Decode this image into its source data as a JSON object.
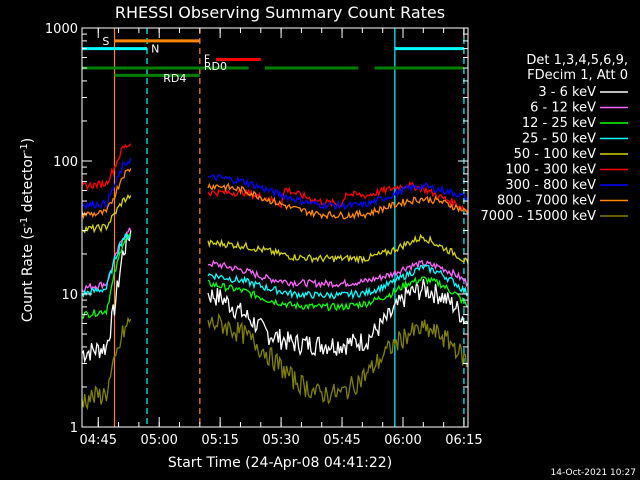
{
  "chart_data": {
    "type": "line",
    "title": "RHESSI Observing Summary Count Rates",
    "xlabel": "Start Time (24-Apr-08 04:41:22)",
    "ylabel_parts": [
      "Count Rate (s",
      "-1",
      " detector",
      "-1",
      ")"
    ],
    "footer_date": "14-Oct-2021 10:27",
    "yscale": "log",
    "ylim": [
      1,
      1000
    ],
    "xlim_min": [
      0,
      95
    ],
    "x_ticks": [
      {
        "m": 4,
        "label": "04:45"
      },
      {
        "m": 19,
        "label": "05:00"
      },
      {
        "m": 34,
        "label": "05:15"
      },
      {
        "m": 49,
        "label": "05:30"
      },
      {
        "m": 64,
        "label": "05:45"
      },
      {
        "m": 79,
        "label": "06:00"
      },
      {
        "m": 94,
        "label": "06:15"
      }
    ],
    "y_ticks": [
      {
        "v": 1,
        "label": "1"
      },
      {
        "v": 10,
        "label": "10"
      },
      {
        "v": 100,
        "label": "100"
      },
      {
        "v": 1000,
        "label": "1000"
      }
    ],
    "legend_header": [
      "Det 1,3,4,5,6,9,",
      "FDecim 1, Att 0"
    ],
    "series": [
      {
        "name": "3 - 6 keV",
        "color": "#ffffff",
        "segments": [
          {
            "x": [
              0,
              3,
              6,
              8,
              10,
              12
            ],
            "y": [
              3.6,
              3.8,
              4,
              8,
              20,
              30
            ]
          },
          {
            "x": [
              31,
              34,
              40,
              46,
              52,
              58,
              64,
              70,
              76,
              80,
              84,
              88,
              92,
              95
            ],
            "y": [
              10,
              9.5,
              7,
              5,
              4.3,
              4.2,
              4.2,
              4.5,
              7,
              10,
              11,
              10,
              8,
              6
            ]
          }
        ]
      },
      {
        "name": "6 - 12 keV",
        "color": "#ff66ff",
        "segments": [
          {
            "x": [
              0,
              3,
              6,
              8,
              10,
              12
            ],
            "y": [
              11,
              11.5,
              12,
              18,
              27,
              30
            ]
          },
          {
            "x": [
              31,
              34,
              40,
              46,
              52,
              58,
              64,
              70,
              76,
              80,
              84,
              88,
              92,
              95
            ],
            "y": [
              17,
              16.5,
              15,
              13,
              12.2,
              12,
              12,
              12.5,
              14,
              16,
              17,
              16,
              14,
              12
            ]
          }
        ]
      },
      {
        "name": "12 - 25 keV",
        "color": "#00ff00",
        "segments": [
          {
            "x": [
              0,
              3,
              6,
              8,
              10,
              12
            ],
            "y": [
              7,
              7.2,
              7.5,
              14,
              24,
              28
            ]
          },
          {
            "x": [
              31,
              34,
              40,
              46,
              52,
              58,
              64,
              70,
              76,
              80,
              84,
              88,
              92,
              95
            ],
            "y": [
              12,
              11.5,
              10.5,
              9,
              8.2,
              8,
              8,
              8.5,
              10,
              12,
              13,
              12,
              10,
              8
            ]
          }
        ]
      },
      {
        "name": "25 - 50 keV",
        "color": "#00ffff",
        "segments": [
          {
            "x": [
              0,
              3,
              6,
              8,
              10,
              12
            ],
            "y": [
              10,
              10.5,
              11,
              18,
              26,
              28
            ]
          },
          {
            "x": [
              31,
              34,
              40,
              46,
              52,
              58,
              64,
              70,
              76,
              80,
              84,
              88,
              92,
              95
            ],
            "y": [
              14,
              13.5,
              12.5,
              11,
              10,
              9.8,
              9.8,
              10.2,
              12,
              14,
              16,
              14.5,
              12,
              10
            ]
          }
        ]
      },
      {
        "name": "50 - 100 keV",
        "color": "#d4d400",
        "segments": [
          {
            "x": [
              0,
              3,
              6,
              8,
              10,
              12
            ],
            "y": [
              31,
              31,
              32,
              40,
              50,
              55
            ]
          },
          {
            "x": [
              31,
              34,
              40,
              46,
              52,
              58,
              64,
              70,
              76,
              80,
              84,
              88,
              92,
              95
            ],
            "y": [
              24,
              24,
              23,
              21,
              19,
              18.5,
              18.5,
              18.5,
              21,
              24,
              27,
              23,
              20,
              17
            ]
          }
        ]
      },
      {
        "name": "100 - 300 keV",
        "color": "#ff0000",
        "segments": [
          {
            "x": [
              0,
              3,
              6,
              8,
              10,
              12
            ],
            "y": [
              65,
              66,
              68,
              90,
              125,
              135
            ]
          },
          {
            "x": [
              31,
              34,
              40,
              46,
              49,
              50,
              52,
              58,
              64,
              65,
              66,
              70,
              76,
              80,
              84,
              88,
              92,
              95
            ],
            "y": [
              58,
              58,
              58,
              52,
              47,
              62,
              58,
              50,
              47,
              58,
              56,
              55,
              62,
              66,
              62,
              54,
              48,
              42
            ]
          }
        ]
      },
      {
        "name": "300 - 800 keV",
        "color": "#0000ff",
        "segments": [
          {
            "x": [
              0,
              3,
              6,
              8,
              10,
              12
            ],
            "y": [
              47,
              47,
              48,
              65,
              90,
              105
            ]
          },
          {
            "x": [
              31,
              34,
              40,
              46,
              52,
              58,
              64,
              70,
              76,
              80,
              84,
              88,
              92,
              95
            ],
            "y": [
              75,
              75,
              70,
              60,
              52,
              47,
              46,
              47,
              55,
              62,
              65,
              61,
              57,
              52
            ]
          }
        ]
      },
      {
        "name": "800 - 7000 keV",
        "color": "#ff8800",
        "segments": [
          {
            "x": [
              0,
              3,
              6,
              8,
              10,
              12
            ],
            "y": [
              40,
              40,
              41,
              55,
              78,
              88
            ]
          },
          {
            "x": [
              31,
              34,
              40,
              46,
              52,
              58,
              64,
              70,
              76,
              80,
              84,
              88,
              92,
              95
            ],
            "y": [
              65,
              65,
              60,
              51,
              44,
              40,
              39,
              40,
              46,
              50,
              52,
              50,
              45,
              41
            ]
          }
        ]
      },
      {
        "name": "7000 - 15000 keV",
        "color": "#808000",
        "segments": [
          {
            "x": [
              0,
              3,
              6,
              8,
              10,
              12
            ],
            "y": [
              1.6,
              1.7,
              1.8,
              3,
              5,
              6.5
            ]
          },
          {
            "x": [
              31,
              34,
              40,
              46,
              52,
              58,
              64,
              70,
              76,
              80,
              84,
              88,
              92,
              95
            ],
            "y": [
              6,
              6,
              5,
              3.5,
              2.3,
              1.8,
              1.8,
              2.5,
              4,
              5,
              5.5,
              5,
              4,
              3
            ]
          }
        ]
      }
    ],
    "overlay_bars": [
      {
        "label": "S",
        "color": "#ff8800",
        "y": 800,
        "ranges": [
          [
            8,
            29
          ]
        ],
        "label_at_x": 5,
        "label_y": 800,
        "label_color": "#ff8800"
      },
      {
        "label": "N",
        "color": "#00ffff",
        "y": 700,
        "ranges": [
          [
            0,
            16
          ],
          [
            77,
            94
          ]
        ],
        "label_at_x": 17,
        "label_y": 700,
        "label_color": "#00ffff"
      },
      {
        "label": "F",
        "color": "#ff0000",
        "y": 580,
        "ranges": [
          [
            33,
            44
          ]
        ],
        "label_at_x": 30,
        "label_y": 590,
        "label_color": "#ff0000"
      },
      {
        "label": "RD0",
        "color": "#008000",
        "y": 500,
        "ranges": [
          [
            0,
            29
          ],
          [
            29,
            41
          ],
          [
            45,
            68
          ],
          [
            72,
            94
          ]
        ],
        "label_at_x": 30,
        "label_y": 520,
        "label_color": "#00aa00"
      },
      {
        "label": "RD4",
        "color": "#008000",
        "y": 440,
        "ranges": [
          [
            8,
            29
          ]
        ],
        "label_at_x": 20,
        "label_y": 420,
        "label_color": "#00aa00"
      }
    ],
    "vlines": [
      {
        "x": 8,
        "color": "#ff8800",
        "dash": false
      },
      {
        "x": 16,
        "color": "#00ffff",
        "dash": true
      },
      {
        "x": 29,
        "color": "#ff8800",
        "dash": true
      },
      {
        "x": 77,
        "color": "#00ffff",
        "dash": false
      },
      {
        "x": 94,
        "color": "#00ffff",
        "dash": true
      }
    ]
  }
}
